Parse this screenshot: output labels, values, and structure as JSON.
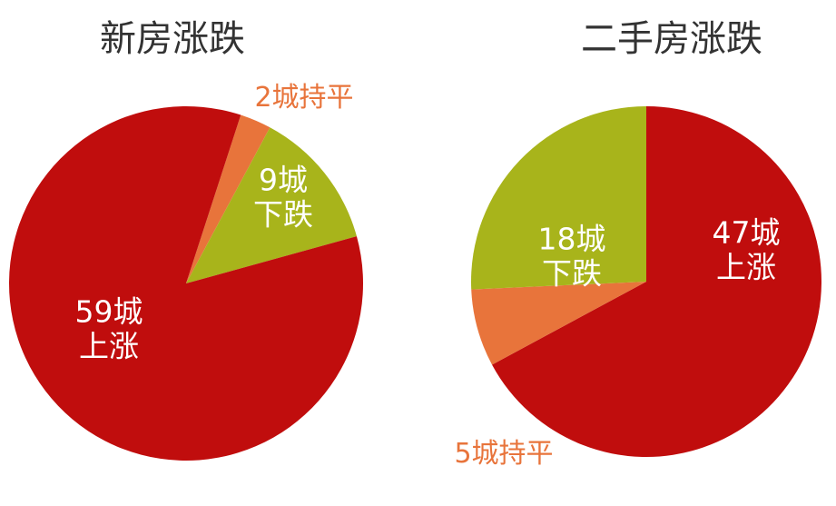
{
  "chart_data": [
    {
      "type": "pie",
      "title": "新房涨跌",
      "categories": [
        "持平",
        "下跌",
        "上涨"
      ],
      "values": [
        2,
        9,
        59
      ],
      "value_labels": [
        "2城",
        "9城",
        "59城"
      ],
      "colors": [
        "#e8743b",
        "#a8b41b",
        "#c00d0d"
      ]
    },
    {
      "type": "pie",
      "title": "二手房涨跌",
      "categories": [
        "上涨",
        "持平",
        "下跌"
      ],
      "values": [
        47,
        5,
        18
      ],
      "value_labels": [
        "47城",
        "5城",
        "18城"
      ],
      "colors": [
        "#c00d0d",
        "#e8743b",
        "#a8b41b"
      ]
    }
  ]
}
